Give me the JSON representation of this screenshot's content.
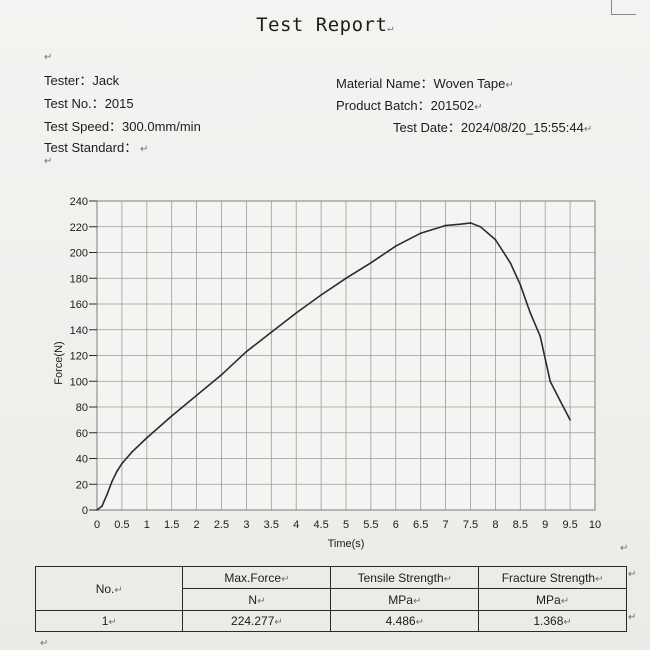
{
  "report": {
    "title": "Test Report",
    "fields": {
      "tester_label": "Tester：",
      "tester_value": "Jack",
      "test_no_label": "Test No.：",
      "test_no_value": "2015",
      "test_speed_label": "Test Speed：",
      "test_speed_value": "300.0mm/min",
      "test_standard_label": "Test Standard：",
      "material_name_label": "Material Name：",
      "material_name_value": "Woven Tape",
      "product_batch_label": "Product Batch：",
      "product_batch_value": "201502",
      "test_date_label": "Test Date：",
      "test_date_value": "2024/08/20_15:55:44"
    }
  },
  "chart_data": {
    "type": "line",
    "title": "",
    "xlabel": "Time(s)",
    "ylabel": "Force(N)",
    "xlim": [
      0,
      10
    ],
    "ylim": [
      0,
      240
    ],
    "grid": true,
    "x_ticks": [
      "0",
      "0.5",
      "1",
      "1.5",
      "2",
      "2.5",
      "3",
      "3.5",
      "4",
      "4.5",
      "5",
      "5.5",
      "6",
      "6.5",
      "7",
      "7.5",
      "8",
      "8.5",
      "9",
      "9.5",
      "10"
    ],
    "y_ticks": [
      "0",
      "20",
      "40",
      "60",
      "80",
      "100",
      "120",
      "140",
      "160",
      "180",
      "200",
      "220",
      "240"
    ],
    "series": [
      {
        "x": [
          0,
          0.1,
          0.2,
          0.3,
          0.4,
          0.5,
          0.7,
          1.0,
          1.5,
          2.0,
          2.5,
          3.0,
          3.5,
          4.0,
          4.5,
          5.0,
          5.5,
          6.0,
          6.5,
          7.0,
          7.3,
          7.5,
          7.7,
          8.0,
          8.3,
          8.5,
          8.7,
          8.9,
          9.1,
          9.3,
          9.5
        ],
        "y": [
          0,
          3,
          12,
          22,
          30,
          36,
          45,
          56,
          73,
          89,
          105,
          123,
          138,
          153,
          167,
          180,
          192,
          205,
          215,
          221,
          222,
          223,
          220,
          210,
          192,
          175,
          153,
          135,
          100,
          85,
          70
        ]
      }
    ]
  },
  "table": {
    "headers": [
      {
        "line1": "No."
      },
      {
        "line1": "Max.Force",
        "line2": "N"
      },
      {
        "line1": "Tensile Strength",
        "line2": "MPa"
      },
      {
        "line1": "Fracture Strength",
        "line2": "MPa"
      }
    ],
    "rows": [
      {
        "no": "1",
        "max_force": "224.277",
        "tensile_strength": "4.486",
        "fracture_strength": "1.368"
      }
    ]
  }
}
